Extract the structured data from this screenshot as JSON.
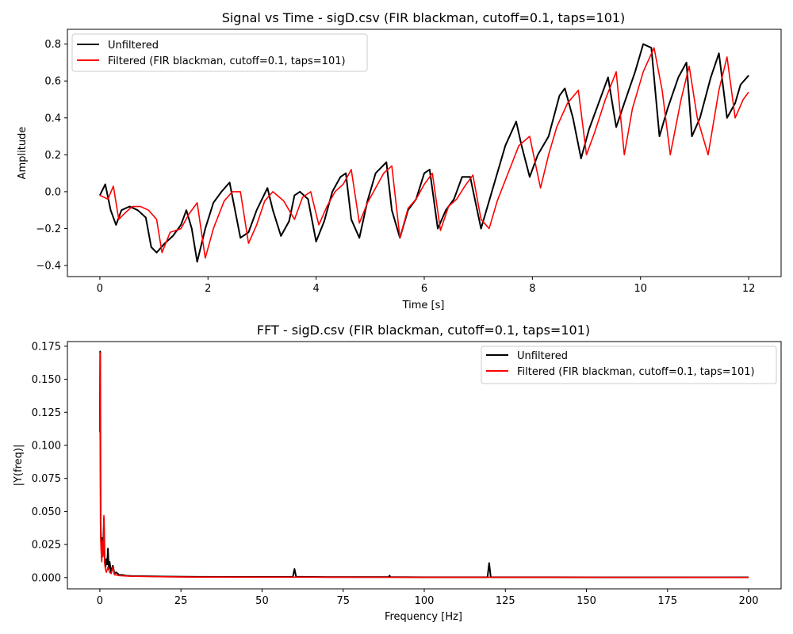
{
  "chart_data": [
    {
      "type": "line",
      "title": "Signal vs Time - sigD.csv (FIR blackman, cutoff=0.1, taps=101)",
      "xlabel": "Time [s]",
      "ylabel": "Amplitude",
      "xlim": [
        -0.6,
        12.6
      ],
      "ylim": [
        -0.46,
        0.88
      ],
      "xticks": [
        0,
        2,
        4,
        6,
        8,
        10,
        12
      ],
      "yticks": [
        -0.4,
        -0.2,
        0.0,
        0.2,
        0.4,
        0.6,
        0.8
      ],
      "ytick_labels": [
        "−0.4",
        "−0.2",
        "0.0",
        "0.2",
        "0.4",
        "0.6",
        "0.8"
      ],
      "grid": false,
      "legend_position": "upper left",
      "series": [
        {
          "name": "Unfiltered",
          "color": "#000000",
          "x": [
            0,
            0.1,
            0.2,
            0.3,
            0.4,
            0.55,
            0.7,
            0.85,
            0.95,
            1.05,
            1.2,
            1.35,
            1.5,
            1.6,
            1.7,
            1.8,
            1.95,
            2.1,
            2.25,
            2.4,
            2.5,
            2.6,
            2.75,
            2.9,
            3.1,
            3.2,
            3.35,
            3.5,
            3.6,
            3.7,
            3.85,
            4.0,
            4.15,
            4.3,
            4.45,
            4.55,
            4.65,
            4.8,
            4.95,
            5.1,
            5.3,
            5.4,
            5.55,
            5.7,
            5.85,
            6.0,
            6.1,
            6.25,
            6.4,
            6.55,
            6.7,
            6.85,
            7.05,
            7.2,
            7.35,
            7.5,
            7.7,
            7.8,
            7.95,
            8.1,
            8.3,
            8.5,
            8.6,
            8.75,
            8.9,
            9.05,
            9.25,
            9.4,
            9.55,
            9.7,
            9.9,
            10.05,
            10.2,
            10.35,
            10.5,
            10.7,
            10.85,
            10.95,
            11.1,
            11.3,
            11.45,
            11.6,
            11.75,
            11.85,
            12.0
          ],
          "y": [
            -0.02,
            0.04,
            -0.1,
            -0.18,
            -0.1,
            -0.08,
            -0.1,
            -0.14,
            -0.3,
            -0.33,
            -0.28,
            -0.24,
            -0.18,
            -0.1,
            -0.2,
            -0.38,
            -0.2,
            -0.06,
            0.0,
            0.05,
            -0.1,
            -0.25,
            -0.22,
            -0.1,
            0.02,
            -0.1,
            -0.24,
            -0.16,
            -0.02,
            0.0,
            -0.04,
            -0.27,
            -0.16,
            0.0,
            0.08,
            0.1,
            -0.15,
            -0.25,
            -0.05,
            0.1,
            0.16,
            -0.1,
            -0.25,
            -0.1,
            -0.04,
            0.1,
            0.12,
            -0.2,
            -0.1,
            -0.04,
            0.08,
            0.08,
            -0.2,
            -0.05,
            0.1,
            0.25,
            0.38,
            0.25,
            0.08,
            0.2,
            0.3,
            0.52,
            0.56,
            0.4,
            0.18,
            0.34,
            0.5,
            0.62,
            0.35,
            0.48,
            0.65,
            0.8,
            0.78,
            0.3,
            0.45,
            0.62,
            0.7,
            0.3,
            0.4,
            0.62,
            0.75,
            0.4,
            0.48,
            0.58,
            0.63
          ]
        },
        {
          "name": "Filtered (FIR blackman, cutoff=0.1, taps=101)",
          "color": "#ff0000",
          "x": [
            0,
            0.15,
            0.25,
            0.35,
            0.45,
            0.6,
            0.75,
            0.9,
            1.05,
            1.15,
            1.3,
            1.5,
            1.65,
            1.8,
            1.95,
            2.1,
            2.3,
            2.45,
            2.6,
            2.75,
            2.9,
            3.05,
            3.2,
            3.4,
            3.6,
            3.75,
            3.9,
            4.05,
            4.2,
            4.35,
            4.5,
            4.65,
            4.8,
            4.95,
            5.1,
            5.25,
            5.4,
            5.55,
            5.7,
            5.85,
            6.0,
            6.15,
            6.3,
            6.45,
            6.6,
            6.75,
            6.9,
            7.05,
            7.2,
            7.35,
            7.55,
            7.75,
            7.95,
            8.15,
            8.3,
            8.45,
            8.65,
            8.85,
            9.0,
            9.15,
            9.35,
            9.55,
            9.7,
            9.85,
            10.05,
            10.25,
            10.4,
            10.55,
            10.75,
            10.9,
            11.05,
            11.25,
            11.45,
            11.6,
            11.75,
            11.9,
            12.0
          ],
          "y": [
            -0.02,
            -0.04,
            0.03,
            -0.15,
            -0.12,
            -0.08,
            -0.08,
            -0.1,
            -0.15,
            -0.33,
            -0.22,
            -0.2,
            -0.12,
            -0.06,
            -0.36,
            -0.2,
            -0.05,
            0.0,
            0.0,
            -0.28,
            -0.18,
            -0.05,
            0.0,
            -0.05,
            -0.15,
            -0.03,
            0.0,
            -0.18,
            -0.08,
            0.0,
            0.04,
            0.12,
            -0.17,
            -0.06,
            0.02,
            0.1,
            0.14,
            -0.25,
            -0.09,
            -0.04,
            0.04,
            0.1,
            -0.21,
            -0.08,
            -0.04,
            0.03,
            0.09,
            -0.15,
            -0.2,
            -0.05,
            0.1,
            0.25,
            0.3,
            0.02,
            0.2,
            0.35,
            0.48,
            0.55,
            0.2,
            0.32,
            0.5,
            0.65,
            0.2,
            0.45,
            0.65,
            0.78,
            0.55,
            0.2,
            0.5,
            0.68,
            0.4,
            0.2,
            0.55,
            0.73,
            0.4,
            0.5,
            0.54
          ]
        }
      ]
    },
    {
      "type": "line",
      "title": "FFT - sigD.csv (FIR blackman, cutoff=0.1, taps=101)",
      "xlabel": "Frequency [Hz]",
      "ylabel": "|Y(freq)|",
      "xlim": [
        -10,
        210
      ],
      "ylim": [
        -0.0085,
        0.1785
      ],
      "xticks": [
        0,
        25,
        50,
        75,
        100,
        125,
        150,
        175,
        200
      ],
      "yticks": [
        0.0,
        0.025,
        0.05,
        0.075,
        0.1,
        0.125,
        0.15,
        0.175
      ],
      "ytick_labels": [
        "0.000",
        "0.025",
        "0.050",
        "0.075",
        "0.100",
        "0.125",
        "0.150",
        "0.175"
      ],
      "grid": false,
      "legend_position": "upper right",
      "series": [
        {
          "name": "Unfiltered",
          "color": "#000000",
          "x": [
            0,
            0.1,
            0.25,
            0.4,
            0.6,
            0.8,
            1.0,
            1.25,
            1.5,
            1.75,
            2.0,
            2.25,
            2.5,
            2.75,
            3.0,
            3.5,
            4.0,
            4.5,
            5.0,
            5.5,
            6.0,
            7.0,
            8.0,
            10.0,
            15.0,
            20.0,
            30.0,
            40.0,
            59.5,
            60.0,
            60.5,
            70.0,
            89.0,
            89.3,
            89.6,
            100.0,
            119.5,
            120.0,
            120.5,
            140.0,
            160.0,
            180.0,
            200.0
          ],
          "y": [
            0.11,
            0.171,
            0.04,
            0.025,
            0.015,
            0.03,
            0.018,
            0.045,
            0.012,
            0.008,
            0.014,
            0.01,
            0.022,
            0.006,
            0.012,
            0.004,
            0.009,
            0.003,
            0.004,
            0.003,
            0.002,
            0.002,
            0.0015,
            0.0012,
            0.001,
            0.0008,
            0.0006,
            0.0005,
            0.0005,
            0.0065,
            0.0006,
            0.0004,
            0.0004,
            0.0015,
            0.0004,
            0.0003,
            0.0003,
            0.011,
            0.0003,
            0.0003,
            0.0002,
            0.0002,
            0.0002
          ]
        },
        {
          "name": "Filtered (FIR blackman, cutoff=0.1, taps=101)",
          "color": "#ff0000",
          "x": [
            0,
            0.1,
            0.25,
            0.4,
            0.6,
            0.8,
            1.0,
            1.25,
            1.5,
            1.75,
            2.0,
            2.5,
            3.0,
            3.5,
            4.0,
            4.5,
            5.0,
            6.0,
            8.0,
            10.0,
            15.0,
            20.0,
            30.0,
            50.0,
            100.0,
            150.0,
            200.0
          ],
          "y": [
            0.11,
            0.17,
            0.03,
            0.02,
            0.012,
            0.028,
            0.016,
            0.047,
            0.01,
            0.006,
            0.004,
            0.008,
            0.004,
            0.003,
            0.008,
            0.002,
            0.002,
            0.0015,
            0.0012,
            0.001,
            0.0008,
            0.0006,
            0.0004,
            0.0003,
            0.0002,
            0.0002,
            0.0001
          ]
        }
      ]
    }
  ]
}
